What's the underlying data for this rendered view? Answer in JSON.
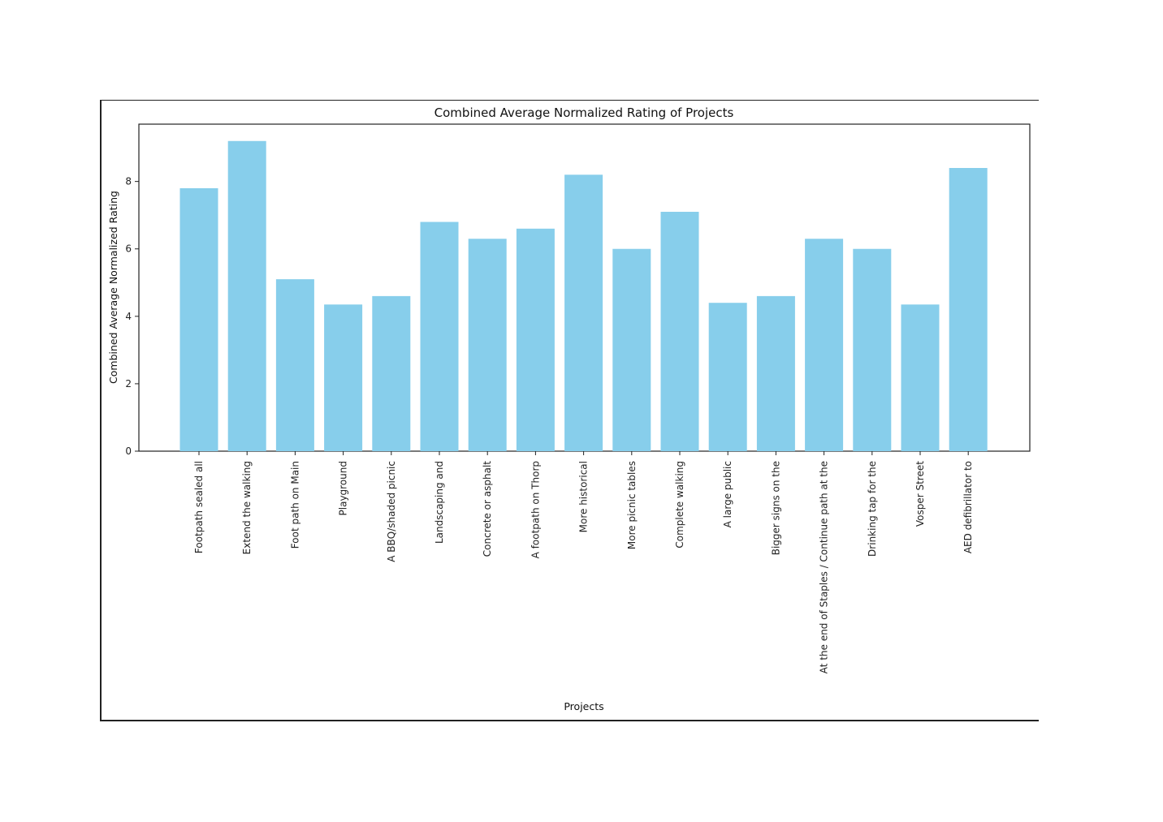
{
  "chart_data": {
    "type": "bar",
    "title": "Combined Average Normalized Rating of Projects",
    "xlabel": "Projects",
    "ylabel": "Combined Average Normalized Rating",
    "ylim": [
      0,
      9.7
    ],
    "yticks": [
      0,
      2,
      4,
      6,
      8
    ],
    "categories": [
      "Footpath sealed all",
      "Extend the walking",
      "Foot path on Main",
      "Playground",
      "A BBQ/shaded picnic",
      "Landscaping and",
      "Concrete or asphalt",
      "A footpath on Thorp",
      "More historical",
      "More picnic tables",
      "Complete walking",
      "A large public",
      "Bigger signs on the",
      "At the end of Staples / Continue path at the",
      "Drinking tap for the",
      "Vosper Street",
      "AED defibrillator to"
    ],
    "values": [
      7.8,
      9.2,
      5.1,
      4.35,
      4.6,
      6.8,
      6.3,
      6.6,
      8.2,
      6.0,
      7.1,
      4.4,
      4.6,
      6.3,
      6.0,
      4.35,
      8.4
    ],
    "bar_color": "#87CEEB",
    "grid": false,
    "legend": "none"
  }
}
